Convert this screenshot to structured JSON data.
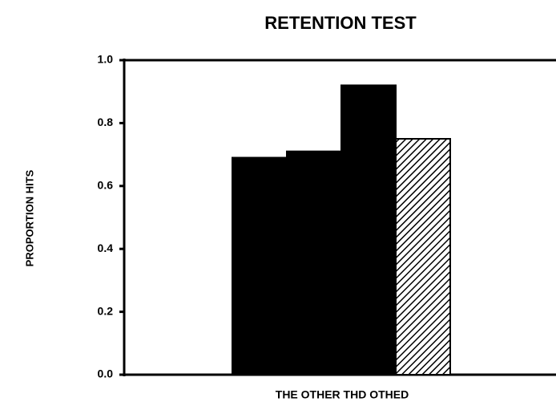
{
  "chart_data": {
    "type": "bar",
    "title": "RETENTION TEST",
    "y_label": "PROPORTION HITS",
    "x_label": "THE OTHER THD OTHED",
    "categories": [
      null,
      null,
      null,
      null
    ],
    "values": [
      0.69,
      0.71,
      0.92,
      0.75
    ],
    "color": "#000000",
    "fills": [
      "solid",
      "solid",
      "solid",
      "hatch"
    ],
    "ylim": [
      0,
      1
    ],
    "yticks": [
      {
        "value": 0,
        "label": "0.0"
      },
      {
        "value": 0.2,
        "label": "0.2"
      },
      {
        "value": 0.4,
        "label": "0.4"
      },
      {
        "value": 0.6,
        "label": "0.6"
      },
      {
        "value": 0.8,
        "label": "0.8"
      },
      {
        "value": 1,
        "label": "1.0"
      }
    ]
  }
}
